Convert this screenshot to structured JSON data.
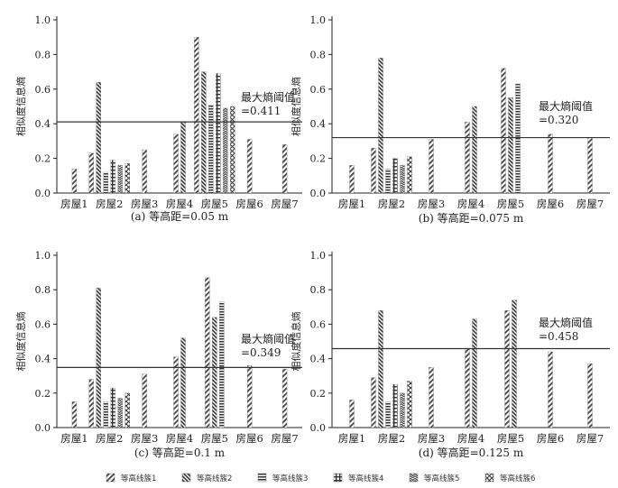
{
  "legend": [
    "等高线簇1",
    "等高线簇2",
    "等高线簇3",
    "等高线簇4",
    "等高线簇5",
    "等高线簇6"
  ],
  "chart_data": [
    {
      "type": "bar",
      "caption": "(a) 等高距=0.05 m",
      "ylabel": "相似度信息熵",
      "ylim": [
        0,
        1.0
      ],
      "yticks": [
        "0.0",
        "0.2",
        "0.4",
        "0.6",
        "0.8",
        "1.0"
      ],
      "categories": [
        "房屋1",
        "房屋2",
        "房屋3",
        "房屋4",
        "房屋5",
        "房屋6",
        "房屋7"
      ],
      "threshold": 0.411,
      "threshold_label": "最大熵阈值",
      "threshold_value_label": "=0.411",
      "series": [
        {
          "name": "等高线簇1",
          "values": [
            0.14,
            0.23,
            0.25,
            0.34,
            0.9,
            0.31,
            0.28
          ]
        },
        {
          "name": "等高线簇2",
          "values": [
            null,
            0.64,
            null,
            0.41,
            0.7,
            null,
            null
          ]
        },
        {
          "name": "等高线簇3",
          "values": [
            null,
            0.12,
            null,
            null,
            0.51,
            null,
            null
          ]
        },
        {
          "name": "等高线簇4",
          "values": [
            null,
            0.19,
            null,
            null,
            0.69,
            null,
            null
          ]
        },
        {
          "name": "等高线簇5",
          "values": [
            null,
            0.16,
            null,
            null,
            0.49,
            null,
            null
          ]
        },
        {
          "name": "等高线簇6",
          "values": [
            null,
            0.17,
            null,
            null,
            0.5,
            null,
            null
          ]
        }
      ]
    },
    {
      "type": "bar",
      "caption": "(b) 等高距=0.075 m",
      "ylabel": "相似度信息熵",
      "ylim": [
        0,
        1.0
      ],
      "yticks": [
        "0.0",
        "0.2",
        "0.4",
        "0.6",
        "0.8",
        "1.0"
      ],
      "categories": [
        "房屋1",
        "房屋2",
        "房屋3",
        "房屋4",
        "房屋5",
        "房屋6",
        "房屋7"
      ],
      "threshold": 0.32,
      "threshold_label": "最大熵阈值",
      "threshold_value_label": "=0.320",
      "series": [
        {
          "name": "等高线簇1",
          "values": [
            0.16,
            0.26,
            0.31,
            0.41,
            0.72,
            0.34,
            0.32
          ]
        },
        {
          "name": "等高线簇2",
          "values": [
            null,
            0.78,
            null,
            0.5,
            0.55,
            null,
            null
          ]
        },
        {
          "name": "等高线簇3",
          "values": [
            null,
            0.14,
            null,
            null,
            0.63,
            null,
            null
          ]
        },
        {
          "name": "等高线簇4",
          "values": [
            null,
            0.2,
            null,
            null,
            null,
            null,
            null
          ]
        },
        {
          "name": "等高线簇5",
          "values": [
            null,
            0.16,
            null,
            null,
            null,
            null,
            null
          ]
        },
        {
          "name": "等高线簇6",
          "values": [
            null,
            0.21,
            null,
            null,
            null,
            null,
            null
          ]
        }
      ]
    },
    {
      "type": "bar",
      "caption": "(c) 等高距=0.1 m",
      "ylabel": "相似度信息熵",
      "ylim": [
        0,
        1.0
      ],
      "yticks": [
        "0.0",
        "0.2",
        "0.4",
        "0.6",
        "0.8",
        "1.0"
      ],
      "categories": [
        "房屋1",
        "房屋2",
        "房屋3",
        "房屋4",
        "房屋5",
        "房屋6",
        "房屋7"
      ],
      "threshold": 0.349,
      "threshold_label": "最大熵阈值",
      "threshold_value_label": "=0.349",
      "series": [
        {
          "name": "等高线簇1",
          "values": [
            0.15,
            0.28,
            0.31,
            0.41,
            0.87,
            0.36,
            0.34
          ]
        },
        {
          "name": "等高线簇2",
          "values": [
            null,
            0.81,
            null,
            0.52,
            0.64,
            null,
            null
          ]
        },
        {
          "name": "等高线簇3",
          "values": [
            null,
            0.15,
            null,
            null,
            0.73,
            null,
            null
          ]
        },
        {
          "name": "等高线簇4",
          "values": [
            null,
            0.23,
            null,
            null,
            null,
            null,
            null
          ]
        },
        {
          "name": "等高线簇5",
          "values": [
            null,
            0.17,
            null,
            null,
            null,
            null,
            null
          ]
        },
        {
          "name": "等高线簇6",
          "values": [
            null,
            0.2,
            null,
            null,
            null,
            null,
            null
          ]
        }
      ]
    },
    {
      "type": "bar",
      "caption": "(d) 等高距=0.125 m",
      "ylabel": "相似度信息熵",
      "ylim": [
        0,
        1.0
      ],
      "yticks": [
        "0.0",
        "0.2",
        "0.4",
        "0.6",
        "0.8",
        "1.0"
      ],
      "categories": [
        "房屋1",
        "房屋2",
        "房屋3",
        "房屋4",
        "房屋5",
        "房屋6",
        "房屋7"
      ],
      "threshold": 0.458,
      "threshold_label": "最大熵阈值",
      "threshold_value_label": "=0.458",
      "series": [
        {
          "name": "等高线簇1",
          "values": [
            0.16,
            0.29,
            0.35,
            0.46,
            0.68,
            0.44,
            0.37
          ]
        },
        {
          "name": "等高线簇2",
          "values": [
            null,
            0.68,
            null,
            0.63,
            0.74,
            null,
            null
          ]
        },
        {
          "name": "等高线簇3",
          "values": [
            null,
            0.15,
            null,
            null,
            null,
            null,
            null
          ]
        },
        {
          "name": "等高线簇4",
          "values": [
            null,
            0.25,
            null,
            null,
            null,
            null,
            null
          ]
        },
        {
          "name": "等高线簇5",
          "values": [
            null,
            0.2,
            null,
            null,
            null,
            null,
            null
          ]
        },
        {
          "name": "等高线簇6",
          "values": [
            null,
            0.27,
            null,
            null,
            null,
            null,
            null
          ]
        }
      ]
    }
  ]
}
